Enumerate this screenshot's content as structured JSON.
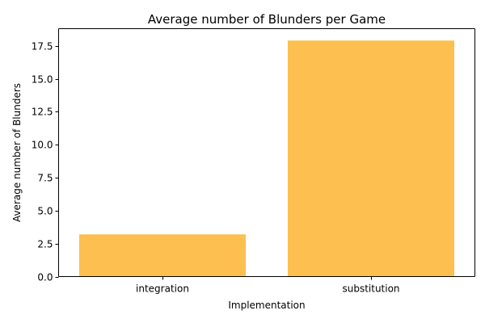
{
  "chart_data": {
    "type": "bar",
    "title": "Average number of Blunders per Game",
    "xlabel": "Implementation",
    "ylabel": "Average number of Blunders",
    "categories": [
      "integration",
      "substitution"
    ],
    "values": [
      3.2,
      17.9
    ],
    "ylim": [
      0,
      18.8
    ],
    "yticks": [
      0.0,
      2.5,
      5.0,
      7.5,
      10.0,
      12.5,
      15.0,
      17.5
    ],
    "ytick_labels": [
      "0.0",
      "2.5",
      "5.0",
      "7.5",
      "10.0",
      "12.5",
      "15.0",
      "17.5"
    ],
    "grid": false,
    "legend": "none",
    "bar_color": "#fdbf4f"
  }
}
